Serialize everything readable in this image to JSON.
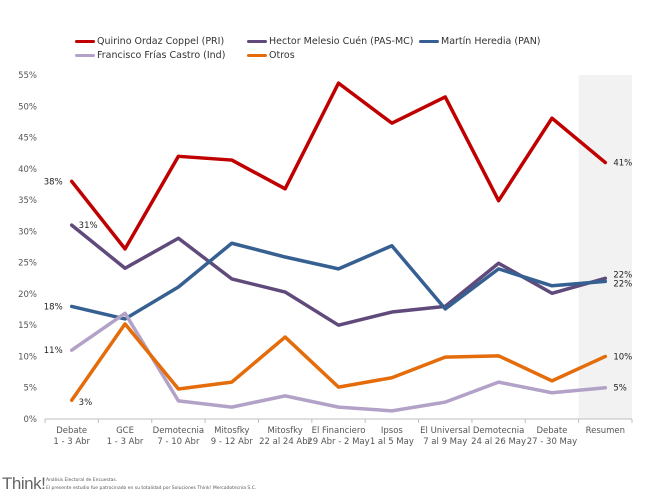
{
  "chart_data": {
    "type": "line",
    "title": "",
    "xlabel": "",
    "ylabel": "",
    "ylim": [
      0,
      55
    ],
    "yticks": [
      "0%",
      "5%",
      "10%",
      "15%",
      "20%",
      "25%",
      "30%",
      "35%",
      "40%",
      "45%",
      "50%",
      "55%"
    ],
    "grid": false,
    "legend_position": "top",
    "highlighted_category": "Resumen",
    "categories": [
      [
        "Debate",
        "1 - 3 Abr"
      ],
      [
        "GCE",
        "1 - 3 Abr"
      ],
      [
        "Demotecnia",
        "7 - 10 Abr"
      ],
      [
        "Mitosfky",
        "9 - 12 Abr"
      ],
      [
        "Mitosfky",
        "22 al 24 Abr"
      ],
      [
        "El Financiero",
        "29 Abr - 2 May"
      ],
      [
        "Ipsos",
        "1 al 5 May"
      ],
      [
        "El Universal",
        "7 al 9 May"
      ],
      [
        "Demotecnia",
        "24 al 26 May"
      ],
      [
        "Debate",
        "27 - 30 May"
      ],
      [
        "Resumen",
        ""
      ]
    ],
    "series": [
      {
        "name": "Quirino Ordaz Coppel (PRI)",
        "color": "#C00000",
        "values": [
          38,
          27.2,
          42,
          41.4,
          36.8,
          53.7,
          47.3,
          51.5,
          34.9,
          48.1,
          41
        ],
        "labels": {
          "0": "38%",
          "10": "41%"
        }
      },
      {
        "name": "Hector Melesio Cuén (PAS-MC)",
        "color": "#604A7B",
        "values": [
          31,
          24.1,
          28.9,
          22.4,
          20.3,
          15,
          17.1,
          18,
          24.9,
          20.1,
          22.5
        ],
        "labels": {
          "0": "31%",
          "10": "22%"
        }
      },
      {
        "name": "Martín Heredia (PAN)",
        "color": "#376092",
        "values": [
          18,
          16,
          21.1,
          28.1,
          25.9,
          24,
          27.7,
          17.6,
          24,
          21.3,
          22
        ],
        "labels": {
          "0": "18%",
          "10": "22%"
        }
      },
      {
        "name": "Francisco Frías Castro (Ind)",
        "color": "#B3A2C7",
        "values": [
          11,
          16.9,
          2.9,
          1.9,
          3.7,
          1.9,
          1.3,
          2.7,
          5.9,
          4.2,
          5
        ],
        "labels": {
          "0": "11%",
          "10": "5%"
        }
      },
      {
        "name": "Otros",
        "color": "#E46C0A",
        "values": [
          3,
          15.2,
          4.8,
          5.9,
          13.1,
          5.1,
          6.6,
          9.9,
          10.1,
          6.1,
          10
        ],
        "labels": {
          "0": "3%",
          "10": "10%"
        }
      }
    ]
  },
  "footer": {
    "logo": "Think!",
    "line1": "Análisis Electoral de Encuestas.",
    "line2": "El presente estudio fue patrocinado en su totalidad por Soluciones Think! Mercadotecnia S.C."
  }
}
